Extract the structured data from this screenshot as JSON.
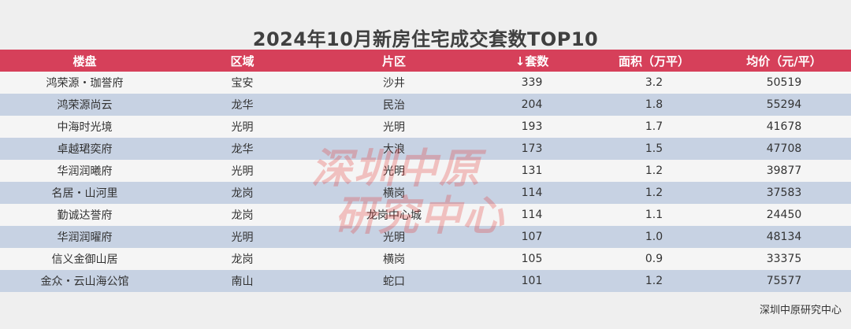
{
  "title": "2024年10月新房住宅成交套数TOP10",
  "chart_data": {
    "type": "table",
    "columns": [
      "楼盘",
      "区域",
      "片区",
      "↓套数",
      "面积（万平）",
      "均价（元/平）"
    ],
    "rows": [
      [
        "鸿荣源・珈誉府",
        "宝安",
        "沙井",
        "339",
        "3.2",
        "50519"
      ],
      [
        "鸿荣源尚云",
        "龙华",
        "民治",
        "204",
        "1.8",
        "55294"
      ],
      [
        "中海时光境",
        "光明",
        "光明",
        "193",
        "1.7",
        "41678"
      ],
      [
        "卓越珺奕府",
        "龙华",
        "大浪",
        "173",
        "1.5",
        "47708"
      ],
      [
        "华润润曦府",
        "光明",
        "光明",
        "131",
        "1.2",
        "39877"
      ],
      [
        "名居・山河里",
        "龙岗",
        "横岗",
        "114",
        "1.2",
        "37583"
      ],
      [
        "勤诚达誉府",
        "龙岗",
        "龙岗中心城",
        "114",
        "1.1",
        "24450"
      ],
      [
        "华润润曜府",
        "光明",
        "光明",
        "107",
        "1.0",
        "48134"
      ],
      [
        "信义金御山居",
        "龙岗",
        "横岗",
        "105",
        "0.9",
        "33375"
      ],
      [
        "金众・云山海公馆",
        "南山",
        "蛇口",
        "101",
        "1.2",
        "75577"
      ]
    ]
  },
  "watermark": [
    "深圳中原",
    "研究中心"
  ],
  "source": "深圳中原研究中心",
  "colors": {
    "header": "#d6405a",
    "row_odd": "#f5f5f5",
    "row_even": "#c7d2e3",
    "watermark": "#e53935"
  }
}
